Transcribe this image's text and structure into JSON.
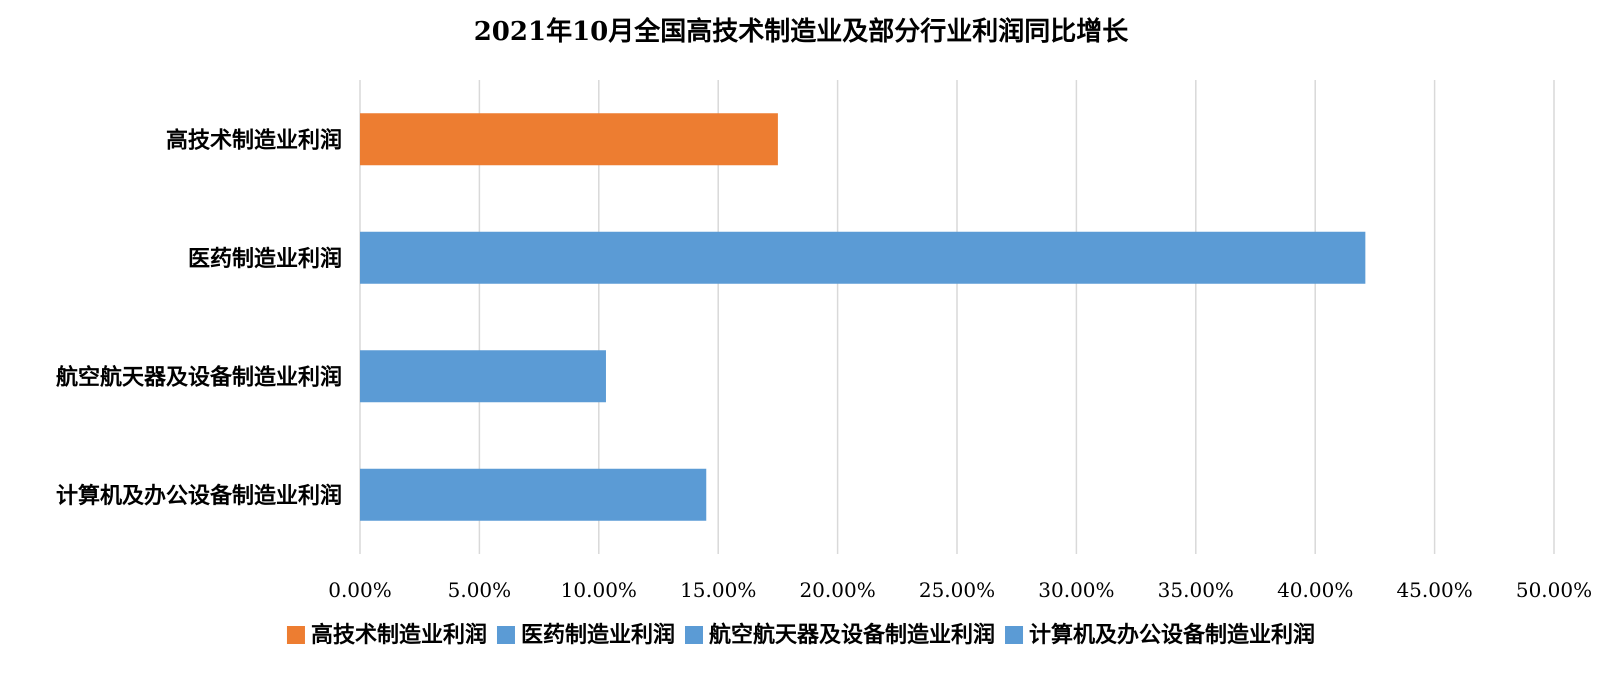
{
  "chart_data": {
    "type": "bar",
    "orientation": "horizontal",
    "title": "2021年10月全国高技术制造业及部分行业利润同比增长",
    "categories": [
      "高技术制造业利润",
      "医药制造业利润",
      "航空航天器及设备制造业利润",
      "计算机及办公设备制造业利润"
    ],
    "values": [
      17.5,
      42.1,
      10.3,
      14.5
    ],
    "colors": [
      "#ED7D31",
      "#5B9BD5",
      "#5B9BD5",
      "#5B9BD5"
    ],
    "xlim": [
      0,
      50
    ],
    "xticks": [
      0,
      5,
      10,
      15,
      20,
      25,
      30,
      35,
      40,
      45,
      50
    ],
    "xtick_labels": [
      "0.00%",
      "5.00%",
      "10.00%",
      "15.00%",
      "20.00%",
      "25.00%",
      "30.00%",
      "35.00%",
      "40.00%",
      "45.00%",
      "50.00%"
    ],
    "grid": "vertical",
    "legend": {
      "position": "bottom",
      "entries": [
        {
          "label": "高技术制造业利润",
          "color": "#ED7D31"
        },
        {
          "label": "医药制造业利润",
          "color": "#5B9BD5"
        },
        {
          "label": "航空航天器及设备制造业利润",
          "color": "#5B9BD5"
        },
        {
          "label": "计算机及办公设备制造业利润",
          "color": "#5B9BD5"
        }
      ]
    }
  }
}
